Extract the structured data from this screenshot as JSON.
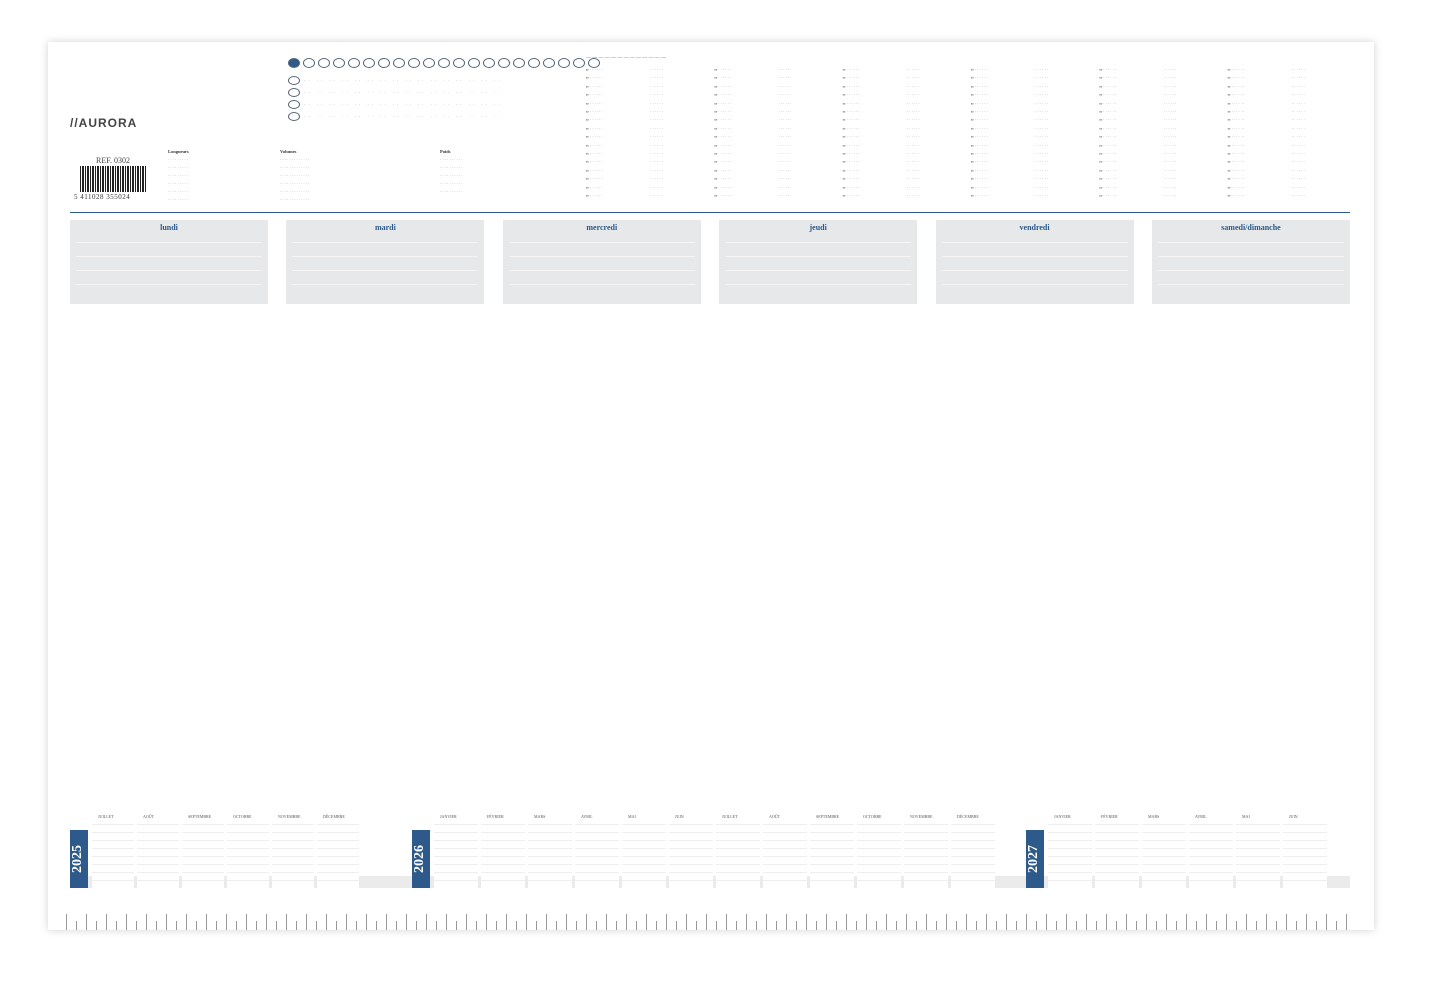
{
  "brand": {
    "logo": "//AURORA"
  },
  "ref": "REF. 0302",
  "barcode_number": "5 411028 355024",
  "conversion_headers": [
    "Longueurs",
    "Volumes",
    "Poids"
  ],
  "days": [
    "lundi",
    "mardi",
    "mercredi",
    "jeudi",
    "vendredi",
    "samedi/dimanche"
  ],
  "calendar": {
    "years": [
      "2025",
      "2026",
      "2027"
    ],
    "months_2025": [
      "JUILLET",
      "AOÛT",
      "SEPTEMBRE",
      "OCTOBRE",
      "NOVEMBRE",
      "DÉCEMBRE"
    ],
    "months_2026": [
      "JANVIER",
      "FÉVRIER",
      "MARS",
      "AVRIL",
      "MAI",
      "JUIN",
      "JUILLET",
      "AOÛT",
      "SEPTEMBRE",
      "OCTOBRE",
      "NOVEMBRE",
      "DÉCEMBRE"
    ],
    "months_2027": [
      "JANVIER",
      "FÉVRIER",
      "MARS",
      "AVRIL",
      "MAI",
      "JUIN"
    ]
  },
  "colors": {
    "accent": "#2d5a8a",
    "panel": "#e7e8ea"
  }
}
